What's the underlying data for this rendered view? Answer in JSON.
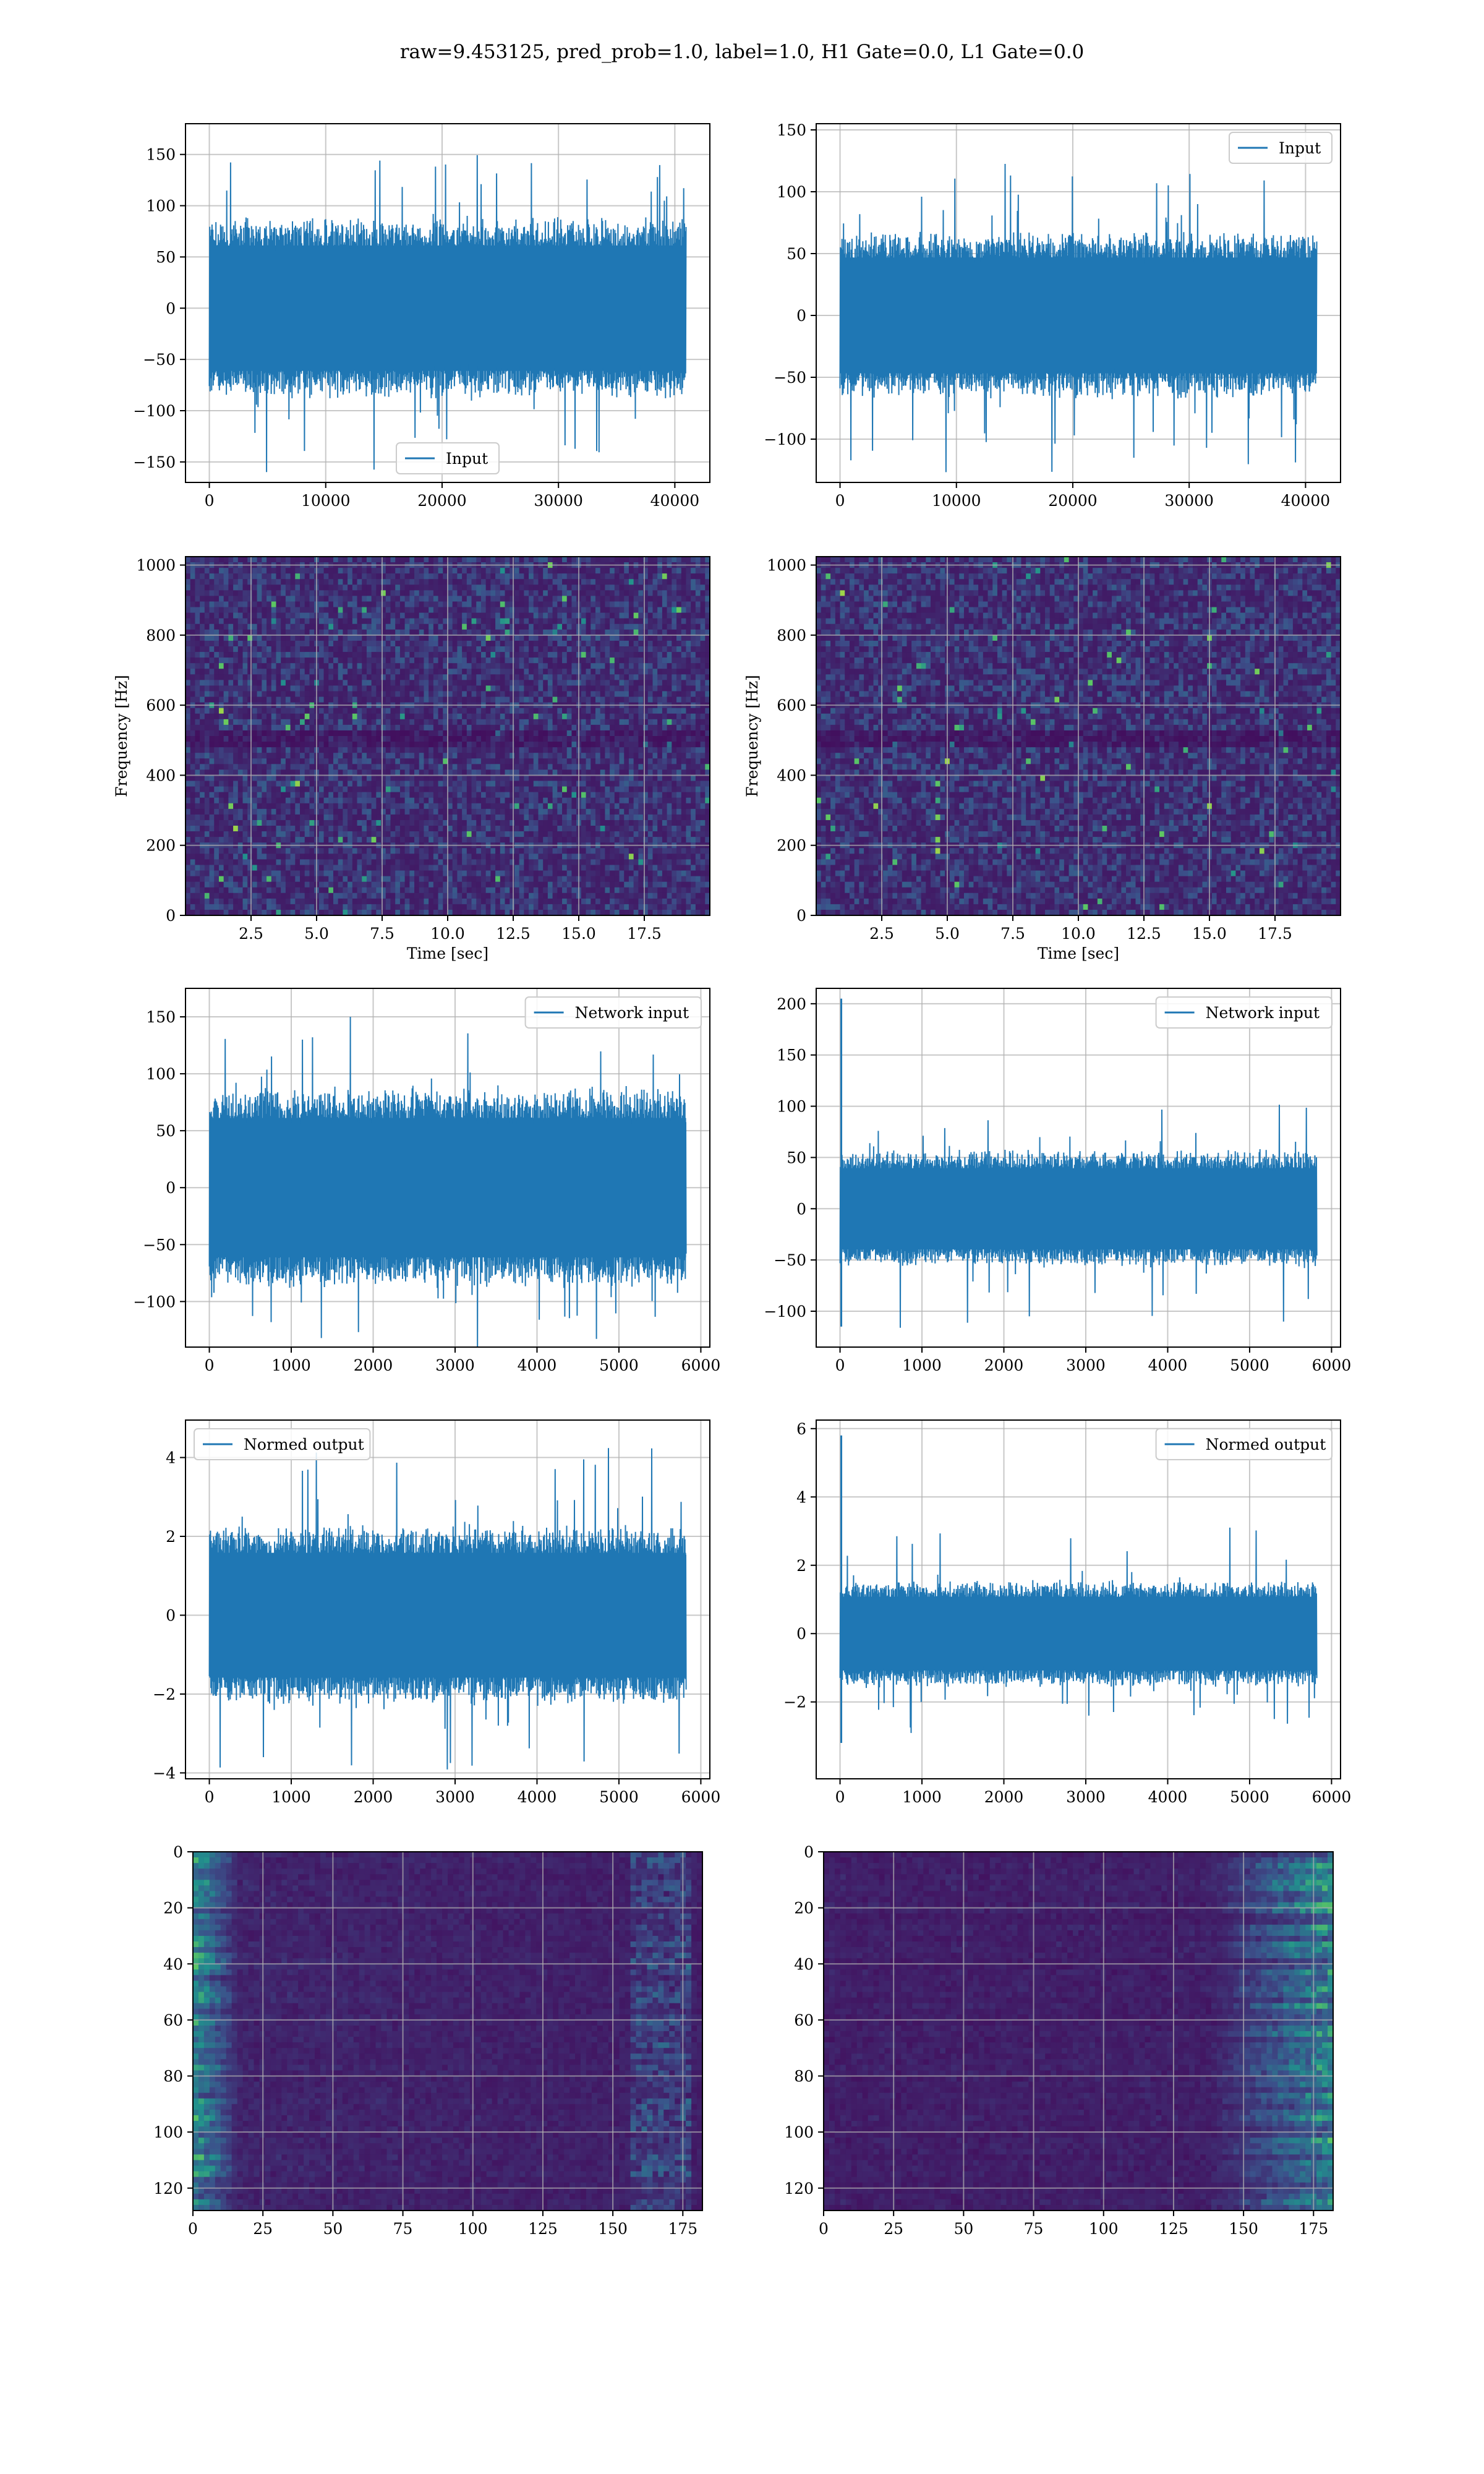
{
  "figure": {
    "title": "raw=9.453125, pred_prob=1.0, label=1.0, H1 Gate=0.0, L1 Gate=0.0"
  },
  "colors": {
    "line": "#1f77b4",
    "grid": "#b0b0b0",
    "viridis": [
      "#440154",
      "#3b528b",
      "#21908d",
      "#5dc863",
      "#fde725"
    ]
  },
  "chart_data": [
    {
      "id": "input-h1",
      "type": "line",
      "title": "",
      "xlabel": "",
      "ylabel": "",
      "xlim": [
        -2048,
        43008
      ],
      "ylim": [
        -170,
        180
      ],
      "xticks": [
        0,
        10000,
        20000,
        30000,
        40000
      ],
      "xtick_labels": [
        "0",
        "10000",
        "20000",
        "30000",
        "40000"
      ],
      "yticks": [
        -150,
        -100,
        -50,
        0,
        50,
        100,
        150
      ],
      "ytick_labels": [
        "−150",
        "−100",
        "−50",
        "0",
        "50",
        "100",
        "150"
      ],
      "grid": true,
      "legend": {
        "position": "lower-center",
        "entries": [
          "Input"
        ]
      },
      "series": [
        {
          "name": "Input",
          "x_range": [
            0,
            40960
          ],
          "band": 85,
          "peak": 165,
          "seed": 3
        }
      ]
    },
    {
      "id": "input-l1",
      "type": "line",
      "title": "",
      "xlabel": "",
      "ylabel": "",
      "xlim": [
        -2048,
        43008
      ],
      "ylim": [
        -135,
        155
      ],
      "xticks": [
        0,
        10000,
        20000,
        30000,
        40000
      ],
      "xtick_labels": [
        "0",
        "10000",
        "20000",
        "30000",
        "40000"
      ],
      "yticks": [
        -100,
        -50,
        0,
        50,
        100,
        150
      ],
      "ytick_labels": [
        "−100",
        "−50",
        "0",
        "50",
        "100",
        "150"
      ],
      "grid": true,
      "legend": {
        "position": "upper-right",
        "entries": [
          "Input"
        ]
      },
      "series": [
        {
          "name": "Input",
          "x_range": [
            0,
            40960
          ],
          "band": 65,
          "peak": 135,
          "seed": 7
        }
      ]
    },
    {
      "id": "spectrogram-h1",
      "type": "heatmap",
      "title": "",
      "xlabel": "Time [sec]",
      "ylabel": "Frequency [Hz]",
      "xlim": [
        0,
        20
      ],
      "ylim": [
        0,
        1024
      ],
      "xticks": [
        2.5,
        5.0,
        7.5,
        10.0,
        12.5,
        15.0,
        17.5
      ],
      "xtick_labels": [
        "2.5",
        "5.0",
        "7.5",
        "10.0",
        "12.5",
        "15.0",
        "17.5"
      ],
      "yticks": [
        0,
        200,
        400,
        600,
        800,
        1000
      ],
      "ytick_labels": [
        "0",
        "200",
        "400",
        "600",
        "800",
        "1000"
      ],
      "grid": true,
      "colormap": "viridis",
      "pattern": "noise",
      "seed": 11
    },
    {
      "id": "spectrogram-l1",
      "type": "heatmap",
      "title": "",
      "xlabel": "Time [sec]",
      "ylabel": "Frequency [Hz]",
      "xlim": [
        0,
        20
      ],
      "ylim": [
        0,
        1024
      ],
      "xticks": [
        2.5,
        5.0,
        7.5,
        10.0,
        12.5,
        15.0,
        17.5
      ],
      "xtick_labels": [
        "2.5",
        "5.0",
        "7.5",
        "10.0",
        "12.5",
        "15.0",
        "17.5"
      ],
      "yticks": [
        0,
        200,
        400,
        600,
        800,
        1000
      ],
      "ytick_labels": [
        "0",
        "200",
        "400",
        "600",
        "800",
        "1000"
      ],
      "grid": true,
      "colormap": "viridis",
      "pattern": "noise",
      "seed": 13
    },
    {
      "id": "network-input-h1",
      "type": "line",
      "title": "",
      "xlabel": "",
      "ylabel": "",
      "xlim": [
        -291,
        6110
      ],
      "ylim": [
        -140,
        175
      ],
      "xticks": [
        0,
        1000,
        2000,
        3000,
        4000,
        5000,
        6000
      ],
      "xtick_labels": [
        "0",
        "1000",
        "2000",
        "3000",
        "4000",
        "5000",
        "6000"
      ],
      "yticks": [
        -100,
        -50,
        0,
        50,
        100,
        150
      ],
      "ytick_labels": [
        "−100",
        "−50",
        "0",
        "50",
        "100",
        "150"
      ],
      "grid": true,
      "legend": {
        "position": "upper-right",
        "entries": [
          "Network input"
        ]
      },
      "series": [
        {
          "name": "Network input",
          "x_range": [
            0,
            5820
          ],
          "band": 85,
          "peak": 160,
          "seed": 17
        }
      ]
    },
    {
      "id": "network-input-l1",
      "type": "line",
      "title": "",
      "xlabel": "",
      "ylabel": "",
      "xlim": [
        -291,
        6110
      ],
      "ylim": [
        -135,
        215
      ],
      "xticks": [
        0,
        1000,
        2000,
        3000,
        4000,
        5000,
        6000
      ],
      "xtick_labels": [
        "0",
        "1000",
        "2000",
        "3000",
        "4000",
        "5000",
        "6000"
      ],
      "yticks": [
        -100,
        -50,
        0,
        50,
        100,
        150,
        200
      ],
      "ytick_labels": [
        "−100",
        "−50",
        "0",
        "50",
        "100",
        "150",
        "200"
      ],
      "grid": true,
      "legend": {
        "position": "upper-right",
        "entries": [
          "Network input"
        ]
      },
      "series": [
        {
          "name": "Network input",
          "x_range": [
            0,
            5820
          ],
          "band": 55,
          "peak": 120,
          "spike": [
            15,
            205,
            -115
          ],
          "seed": 19
        }
      ]
    },
    {
      "id": "normed-output-h1",
      "type": "line",
      "title": "",
      "xlabel": "",
      "ylabel": "",
      "xlim": [
        -291,
        6110
      ],
      "ylim": [
        -4.15,
        4.95
      ],
      "xticks": [
        0,
        1000,
        2000,
        3000,
        4000,
        5000,
        6000
      ],
      "xtick_labels": [
        "0",
        "1000",
        "2000",
        "3000",
        "4000",
        "5000",
        "6000"
      ],
      "yticks": [
        -4,
        -2,
        0,
        2,
        4
      ],
      "ytick_labels": [
        "−4",
        "−2",
        "0",
        "2",
        "4"
      ],
      "grid": true,
      "legend": {
        "position": "upper-left",
        "entries": [
          "Normed output"
        ]
      },
      "series": [
        {
          "name": "Normed output",
          "x_range": [
            0,
            5820
          ],
          "band": 2.2,
          "peak": 4.5,
          "seed": 23
        }
      ]
    },
    {
      "id": "normed-output-l1",
      "type": "line",
      "title": "",
      "xlabel": "",
      "ylabel": "",
      "xlim": [
        -291,
        6110
      ],
      "ylim": [
        -4.25,
        6.25
      ],
      "xticks": [
        0,
        1000,
        2000,
        3000,
        4000,
        5000,
        6000
      ],
      "xtick_labels": [
        "0",
        "1000",
        "2000",
        "3000",
        "4000",
        "5000",
        "6000"
      ],
      "yticks": [
        -2,
        0,
        2,
        4,
        6
      ],
      "ytick_labels": [
        "−2",
        "0",
        "2",
        "4",
        "6"
      ],
      "grid": true,
      "legend": {
        "position": "upper-right",
        "entries": [
          "Normed output"
        ]
      },
      "series": [
        {
          "name": "Normed output",
          "x_range": [
            0,
            5820
          ],
          "band": 1.5,
          "peak": 3.3,
          "spike": [
            15,
            5.8,
            -3.2
          ],
          "seed": 29
        }
      ]
    },
    {
      "id": "feature-map-h1",
      "type": "heatmap",
      "title": "",
      "xlabel": "",
      "ylabel": "",
      "xlim": [
        0,
        182
      ],
      "ylim": [
        128,
        0
      ],
      "xticks": [
        0,
        25,
        50,
        75,
        100,
        125,
        150,
        175
      ],
      "xtick_labels": [
        "0",
        "25",
        "50",
        "75",
        "100",
        "125",
        "150",
        "175"
      ],
      "yticks": [
        0,
        20,
        40,
        60,
        80,
        100,
        120
      ],
      "ytick_labels": [
        "0",
        "20",
        "40",
        "60",
        "80",
        "100",
        "120"
      ],
      "grid": true,
      "colormap": "viridis",
      "pattern": "left-bright",
      "seed": 31
    },
    {
      "id": "feature-map-l1",
      "type": "heatmap",
      "title": "",
      "xlabel": "",
      "ylabel": "",
      "xlim": [
        0,
        182
      ],
      "ylim": [
        128,
        0
      ],
      "xticks": [
        0,
        25,
        50,
        75,
        100,
        125,
        150,
        175
      ],
      "xtick_labels": [
        "0",
        "25",
        "50",
        "75",
        "100",
        "125",
        "150",
        "175"
      ],
      "yticks": [
        0,
        20,
        40,
        60,
        80,
        100,
        120
      ],
      "ytick_labels": [
        "0",
        "20",
        "40",
        "60",
        "80",
        "100",
        "120"
      ],
      "grid": true,
      "colormap": "viridis",
      "pattern": "right-bright",
      "seed": 37
    }
  ]
}
